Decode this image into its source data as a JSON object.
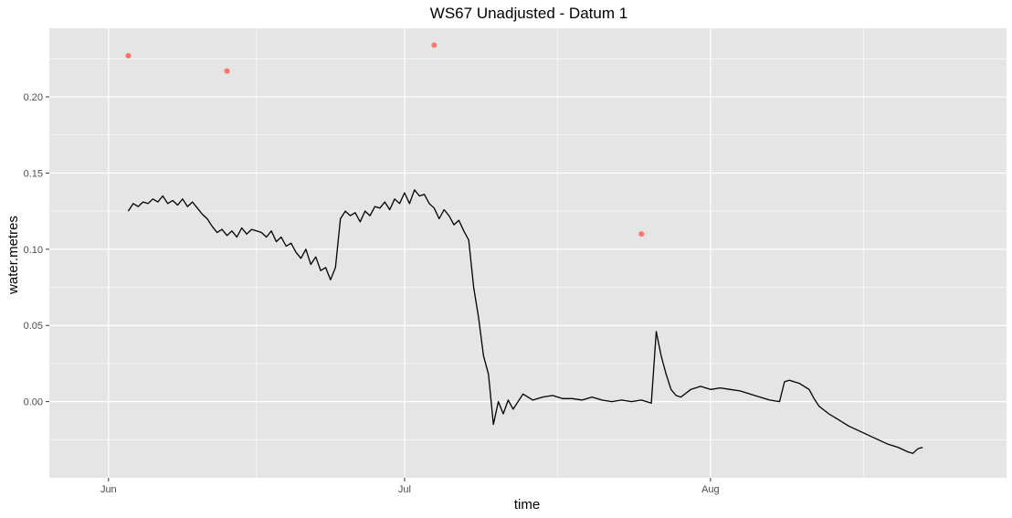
{
  "chart_data": {
    "type": "line",
    "title": "WS67 Unadjusted - Datum 1",
    "xlabel": "time",
    "ylabel": "water.metres",
    "x_ticks": [
      {
        "label": "Jun",
        "date": "2017-06-01"
      },
      {
        "label": "Jul",
        "date": "2017-07-01"
      },
      {
        "label": "Aug",
        "date": "2017-08-01"
      }
    ],
    "y_ticks": [
      0.0,
      0.05,
      0.1,
      0.15,
      0.2
    ],
    "xlim": [
      "2017-05-26",
      "2017-08-31"
    ],
    "ylim": [
      -0.05,
      0.245
    ],
    "grid": true,
    "colors": {
      "panel": "#e5e5e5",
      "grid": "#ffffff",
      "line": "#000000",
      "points": "#f8766d"
    },
    "series": [
      {
        "type": "line",
        "x": [
          "2017-06-03",
          "2017-06-03T12",
          "2017-06-04",
          "2017-06-04T12",
          "2017-06-05",
          "2017-06-05T12",
          "2017-06-06",
          "2017-06-06T12",
          "2017-06-07",
          "2017-06-07T12",
          "2017-06-08",
          "2017-06-08T12",
          "2017-06-09",
          "2017-06-09T12",
          "2017-06-10",
          "2017-06-10T12",
          "2017-06-11",
          "2017-06-11T12",
          "2017-06-12",
          "2017-06-12T12",
          "2017-06-13",
          "2017-06-13T12",
          "2017-06-14",
          "2017-06-14T12",
          "2017-06-15",
          "2017-06-15T12",
          "2017-06-16",
          "2017-06-16T12",
          "2017-06-17",
          "2017-06-17T12",
          "2017-06-18",
          "2017-06-18T12",
          "2017-06-19",
          "2017-06-19T12",
          "2017-06-20",
          "2017-06-20T12",
          "2017-06-21",
          "2017-06-21T12",
          "2017-06-22",
          "2017-06-22T12",
          "2017-06-23",
          "2017-06-23T12",
          "2017-06-24",
          "2017-06-24T12",
          "2017-06-25",
          "2017-06-25T12",
          "2017-06-26",
          "2017-06-26T12",
          "2017-06-27",
          "2017-06-27T12",
          "2017-06-28",
          "2017-06-28T12",
          "2017-06-29",
          "2017-06-29T12",
          "2017-06-30",
          "2017-06-30T12",
          "2017-07-01",
          "2017-07-01T12",
          "2017-07-02",
          "2017-07-02T12",
          "2017-07-03",
          "2017-07-03T12",
          "2017-07-04",
          "2017-07-04T12",
          "2017-07-05",
          "2017-07-05T12",
          "2017-07-06",
          "2017-07-06T12",
          "2017-07-07",
          "2017-07-07T12",
          "2017-07-08",
          "2017-07-08T12",
          "2017-07-09",
          "2017-07-09T12",
          "2017-07-10",
          "2017-07-10T12",
          "2017-07-11",
          "2017-07-11T12",
          "2017-07-12",
          "2017-07-13",
          "2017-07-14",
          "2017-07-15",
          "2017-07-16",
          "2017-07-17",
          "2017-07-18",
          "2017-07-19",
          "2017-07-20",
          "2017-07-21",
          "2017-07-22",
          "2017-07-23",
          "2017-07-24",
          "2017-07-25",
          "2017-07-26",
          "2017-07-26T12",
          "2017-07-27",
          "2017-07-27T12",
          "2017-07-28",
          "2017-07-28T12",
          "2017-07-29",
          "2017-07-30",
          "2017-07-31",
          "2017-08-01",
          "2017-08-02",
          "2017-08-03",
          "2017-08-04",
          "2017-08-05",
          "2017-08-06",
          "2017-08-07",
          "2017-08-08",
          "2017-08-08T12",
          "2017-08-09",
          "2017-08-10",
          "2017-08-11",
          "2017-08-11T12",
          "2017-08-12",
          "2017-08-13",
          "2017-08-14",
          "2017-08-15",
          "2017-08-16",
          "2017-08-17",
          "2017-08-18",
          "2017-08-19",
          "2017-08-20",
          "2017-08-21",
          "2017-08-21T12",
          "2017-08-22",
          "2017-08-22T12"
        ],
        "y": [
          0.125,
          0.13,
          0.128,
          0.131,
          0.13,
          0.133,
          0.131,
          0.135,
          0.13,
          0.132,
          0.129,
          0.133,
          0.128,
          0.131,
          0.127,
          0.123,
          0.12,
          0.115,
          0.111,
          0.113,
          0.109,
          0.112,
          0.108,
          0.114,
          0.11,
          0.113,
          0.112,
          0.111,
          0.108,
          0.112,
          0.105,
          0.108,
          0.102,
          0.104,
          0.098,
          0.094,
          0.1,
          0.09,
          0.095,
          0.086,
          0.088,
          0.08,
          0.088,
          0.12,
          0.125,
          0.122,
          0.124,
          0.118,
          0.125,
          0.122,
          0.128,
          0.127,
          0.131,
          0.126,
          0.133,
          0.13,
          0.137,
          0.13,
          0.139,
          0.135,
          0.136,
          0.13,
          0.127,
          0.12,
          0.126,
          0.122,
          0.116,
          0.119,
          0.112,
          0.106,
          0.075,
          0.055,
          0.03,
          0.018,
          -0.015,
          0.0,
          -0.008,
          0.001,
          -0.005,
          0.005,
          0.001,
          0.003,
          0.004,
          0.002,
          0.002,
          0.001,
          0.003,
          0.001,
          0.0,
          0.001,
          0.0,
          0.001,
          -0.001,
          0.046,
          0.03,
          0.018,
          0.008,
          0.004,
          0.003,
          0.008,
          0.01,
          0.008,
          0.009,
          0.008,
          0.007,
          0.005,
          0.003,
          0.001,
          0.0,
          0.013,
          0.014,
          0.012,
          0.008,
          0.002,
          -0.003,
          -0.008,
          -0.012,
          -0.016,
          -0.019,
          -0.022,
          -0.025,
          -0.028,
          -0.03,
          -0.033,
          -0.034,
          -0.031,
          -0.03
        ]
      },
      {
        "type": "scatter",
        "x": [
          "2017-06-03",
          "2017-06-13",
          "2017-07-04",
          "2017-07-25"
        ],
        "y": [
          0.227,
          0.217,
          0.234,
          0.11
        ]
      }
    ]
  }
}
